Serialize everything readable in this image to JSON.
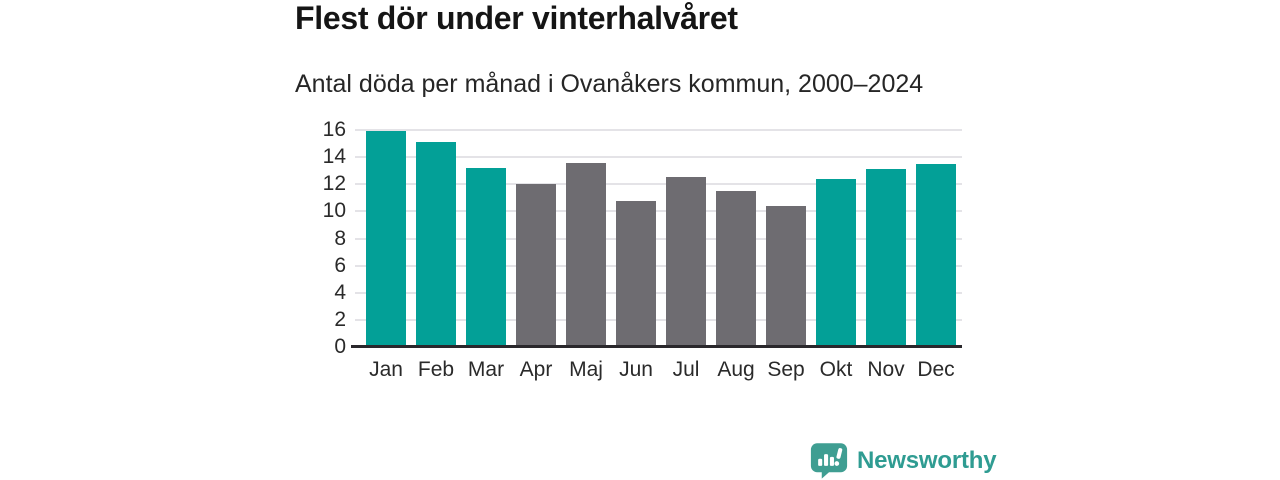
{
  "chart_data": {
    "type": "bar",
    "title": "Flest dör under vinterhalvåret",
    "subtitle": "Antal döda per månad i Ovanåkers kommun, 2000–2024",
    "categories": [
      "Jan",
      "Feb",
      "Mar",
      "Apr",
      "Maj",
      "Jun",
      "Jul",
      "Aug",
      "Sep",
      "Okt",
      "Nov",
      "Dec"
    ],
    "values": [
      15.9,
      15.1,
      13.2,
      12.0,
      13.6,
      10.8,
      12.5,
      11.5,
      10.4,
      12.4,
      13.1,
      13.5
    ],
    "bar_colors": [
      "teal",
      "teal",
      "teal",
      "gray",
      "gray",
      "gray",
      "gray",
      "gray",
      "gray",
      "teal",
      "teal",
      "teal"
    ],
    "xlabel": "",
    "ylabel": "",
    "ylim": [
      0,
      16
    ],
    "yticks": [
      0,
      2,
      4,
      6,
      8,
      10,
      12,
      14,
      16
    ],
    "grid": "horizontal",
    "legend": "none",
    "colors": {
      "teal": "#03a097",
      "gray": "#6e6c71",
      "gridline": "#e4e3e7",
      "axis": "#2a282c"
    }
  },
  "branding": {
    "logo_text": "Newsworthy",
    "logo_color": "#2f9c92",
    "logo_icon": "bar-chart-speech-bubble"
  }
}
